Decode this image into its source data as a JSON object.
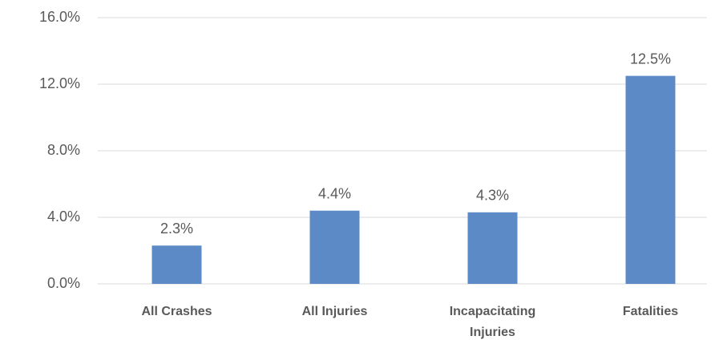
{
  "chart_data": {
    "type": "bar",
    "categories": [
      "All Crashes",
      "All Injuries",
      "Incapacitating Injuries",
      "Fatalities"
    ],
    "values": [
      2.3,
      4.4,
      4.3,
      12.5
    ],
    "value_labels": [
      "2.3%",
      "4.4%",
      "4.3%",
      "12.5%"
    ],
    "color": "#5b8ac6",
    "ylim": [
      0,
      16
    ],
    "yticks": [
      {
        "value": 0,
        "label": "0.0%"
      },
      {
        "value": 4,
        "label": "4.0%"
      },
      {
        "value": 8,
        "label": "8.0%"
      },
      {
        "value": 12,
        "label": "12.0%"
      },
      {
        "value": 16,
        "label": "16.0%"
      }
    ],
    "grid": true
  }
}
